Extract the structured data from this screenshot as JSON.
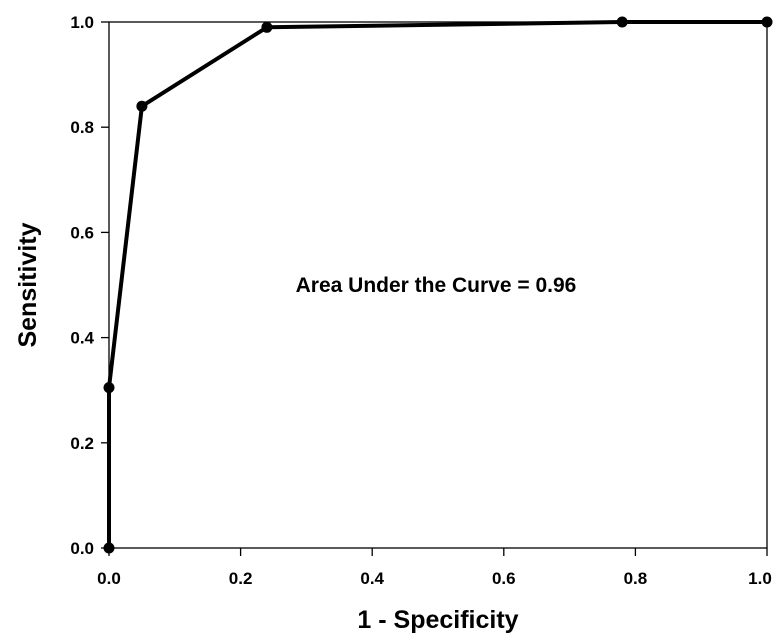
{
  "chart_data": {
    "type": "line",
    "xlabel": "1 - Specificity",
    "ylabel": "Sensitivity",
    "xlim": [
      0.0,
      1.0
    ],
    "ylim": [
      0.0,
      1.0
    ],
    "xticks": [
      "0.0",
      "0.2",
      "0.4",
      "0.6",
      "0.8",
      "1.0"
    ],
    "yticks": [
      "0.0",
      "0.2",
      "0.4",
      "0.6",
      "0.8",
      "1.0"
    ],
    "grid": false,
    "annotation": "Area Under the Curve = 0.96",
    "series": [
      {
        "x": [
          0.0,
          0.0,
          0.05,
          0.24,
          0.78,
          1.0
        ],
        "y": [
          0.0,
          0.305,
          0.84,
          0.99,
          1.0,
          1.0
        ],
        "color": "#000000",
        "marker": "circle"
      }
    ]
  }
}
